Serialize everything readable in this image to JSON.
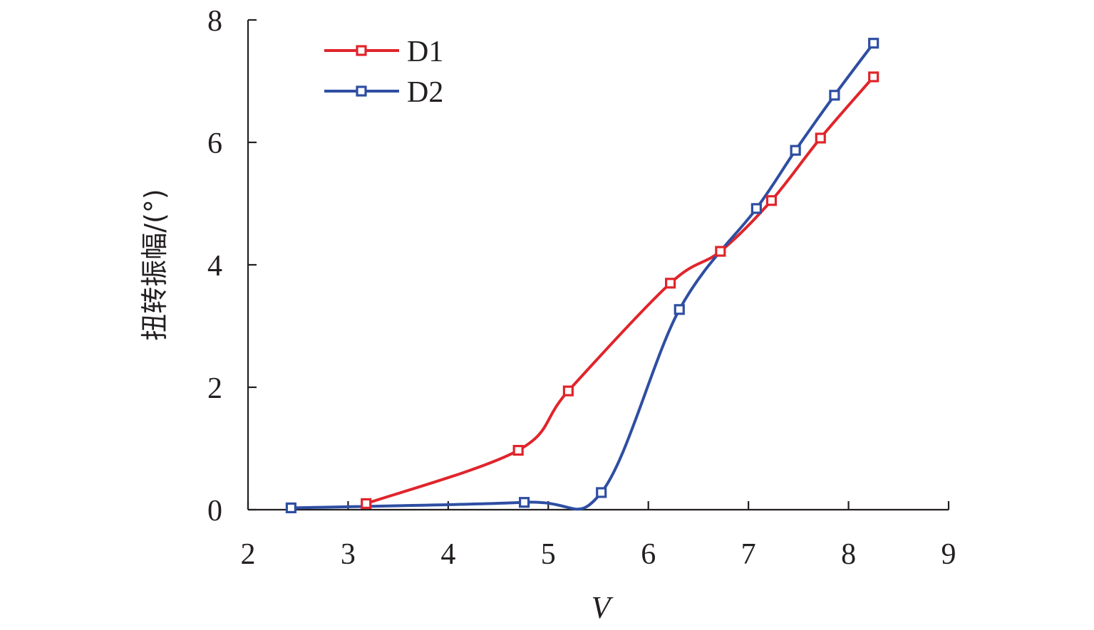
{
  "chart_data": {
    "type": "line",
    "title": "",
    "xlabel": "V",
    "ylabel": "扭转振幅/(°)",
    "xlim": [
      2,
      9
    ],
    "ylim": [
      0,
      8
    ],
    "xticks": [
      "2",
      "3",
      "4",
      "5",
      "6",
      "7",
      "8",
      "9"
    ],
    "yticks": [
      "0",
      "2",
      "4",
      "6",
      "8"
    ],
    "grid": false,
    "legend_position": "top-left",
    "marker": "square-open",
    "series": [
      {
        "name": "D1",
        "color": "#e0242b",
        "points": [
          {
            "x": 3.18,
            "y": 0.1
          },
          {
            "x": 4.7,
            "y": 0.97
          },
          {
            "x": 5.2,
            "y": 1.94
          },
          {
            "x": 6.22,
            "y": 3.7
          },
          {
            "x": 6.72,
            "y": 4.22
          },
          {
            "x": 7.23,
            "y": 5.05
          },
          {
            "x": 7.72,
            "y": 6.07
          },
          {
            "x": 8.25,
            "y": 7.07
          }
        ]
      },
      {
        "name": "D2",
        "color": "#2e4ea2",
        "points": [
          {
            "x": 2.43,
            "y": 0.03
          },
          {
            "x": 4.76,
            "y": 0.12
          },
          {
            "x": 5.53,
            "y": 0.28
          },
          {
            "x": 6.31,
            "y": 3.27
          },
          {
            "x": 7.08,
            "y": 4.92
          },
          {
            "x": 7.47,
            "y": 5.87
          },
          {
            "x": 7.86,
            "y": 6.77
          },
          {
            "x": 8.25,
            "y": 7.62
          }
        ]
      }
    ]
  }
}
